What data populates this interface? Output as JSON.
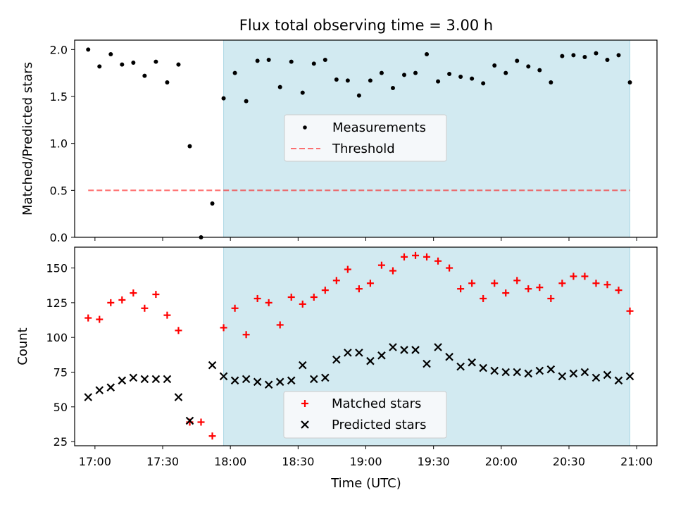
{
  "figure_title": "Flux total observing time = 3.00 h",
  "colors": {
    "shade": "#add8e6",
    "measurement": "#000000",
    "threshold": "#ff0000",
    "matched": "#ff0000",
    "predicted": "#000000"
  },
  "chart_data": [
    {
      "type": "scatter",
      "ylabel": "Matched/Predicted stars",
      "xlim": [
        "16:51",
        "21:09"
      ],
      "ylim": [
        0,
        2.1
      ],
      "yticks": [
        "0.0",
        "0.5",
        "1.0",
        "1.5",
        "2.0"
      ],
      "ytick_values": [
        0,
        0.5,
        1.0,
        1.5,
        2.0
      ],
      "shaded_span": [
        "17:57",
        "20:57"
      ],
      "legend_position": "center",
      "series": [
        {
          "name": "Measurements",
          "style": "dot",
          "x": [
            "16:57",
            "17:02",
            "17:07",
            "17:12",
            "17:17",
            "17:22",
            "17:27",
            "17:32",
            "17:37",
            "17:42",
            "17:47",
            "17:52",
            "17:57",
            "18:02",
            "18:07",
            "18:12",
            "18:17",
            "18:22",
            "18:27",
            "18:32",
            "18:37",
            "18:42",
            "18:47",
            "18:52",
            "18:57",
            "19:02",
            "19:07",
            "19:12",
            "19:17",
            "19:22",
            "19:27",
            "19:32",
            "19:37",
            "19:42",
            "19:47",
            "19:52",
            "19:57",
            "20:02",
            "20:07",
            "20:12",
            "20:17",
            "20:22",
            "20:27",
            "20:32",
            "20:37",
            "20:42",
            "20:47",
            "20:52",
            "20:57"
          ],
          "y": [
            2.0,
            1.82,
            1.95,
            1.84,
            1.86,
            1.72,
            1.87,
            1.65,
            1.84,
            0.97,
            0.0,
            0.36,
            1.48,
            1.75,
            1.45,
            1.88,
            1.89,
            1.6,
            1.87,
            1.54,
            1.85,
            1.89,
            1.68,
            1.67,
            1.51,
            1.67,
            1.75,
            1.59,
            1.73,
            1.75,
            1.95,
            1.66,
            1.74,
            1.71,
            1.69,
            1.64,
            1.83,
            1.75,
            1.88,
            1.82,
            1.78,
            1.65,
            1.93,
            1.94,
            1.92,
            1.96,
            1.89,
            1.94,
            1.65
          ]
        },
        {
          "name": "Threshold",
          "style": "dashed-line",
          "x": [
            "16:57",
            "20:57"
          ],
          "y": [
            0.5,
            0.5
          ]
        }
      ]
    },
    {
      "type": "scatter",
      "ylabel": "Count",
      "xlabel": "Time (UTC)",
      "xlim": [
        "16:51",
        "21:09"
      ],
      "ylim": [
        22,
        165
      ],
      "yticks": [
        "25",
        "50",
        "75",
        "100",
        "125",
        "150"
      ],
      "ytick_values": [
        25,
        50,
        75,
        100,
        125,
        150
      ],
      "xticks": [
        "17:00",
        "17:30",
        "18:00",
        "18:30",
        "19:00",
        "19:30",
        "20:00",
        "20:30",
        "21:00"
      ],
      "xtick_values": [
        "17:00",
        "17:30",
        "18:00",
        "18:30",
        "19:00",
        "19:30",
        "20:00",
        "20:30",
        "21:00"
      ],
      "shaded_span": [
        "17:57",
        "20:57"
      ],
      "legend_position": "lower center",
      "series": [
        {
          "name": "Matched stars",
          "style": "plus",
          "x": [
            "16:57",
            "17:02",
            "17:07",
            "17:12",
            "17:17",
            "17:22",
            "17:27",
            "17:32",
            "17:37",
            "17:42",
            "17:47",
            "17:52",
            "17:57",
            "18:02",
            "18:07",
            "18:12",
            "18:17",
            "18:22",
            "18:27",
            "18:32",
            "18:37",
            "18:42",
            "18:47",
            "18:52",
            "18:57",
            "19:02",
            "19:07",
            "19:12",
            "19:17",
            "19:22",
            "19:27",
            "19:32",
            "19:37",
            "19:42",
            "19:47",
            "19:52",
            "19:57",
            "20:02",
            "20:07",
            "20:12",
            "20:17",
            "20:22",
            "20:27",
            "20:32",
            "20:37",
            "20:42",
            "20:47",
            "20:52",
            "20:57"
          ],
          "y": [
            114,
            113,
            125,
            127,
            132,
            121,
            131,
            116,
            105,
            39,
            39,
            29,
            107,
            121,
            102,
            128,
            125,
            109,
            129,
            124,
            129,
            134,
            141,
            149,
            135,
            139,
            152,
            148,
            158,
            159,
            158,
            155,
            150,
            135,
            139,
            128,
            139,
            132,
            141,
            135,
            136,
            128,
            139,
            144,
            144,
            139,
            138,
            134,
            119
          ]
        },
        {
          "name": "Predicted stars",
          "style": "x",
          "x": [
            "16:57",
            "17:02",
            "17:07",
            "17:12",
            "17:17",
            "17:22",
            "17:27",
            "17:32",
            "17:37",
            "17:42",
            "17:47",
            "17:52",
            "17:57",
            "18:02",
            "18:07",
            "18:12",
            "18:17",
            "18:22",
            "18:27",
            "18:32",
            "18:37",
            "18:42",
            "18:47",
            "18:52",
            "18:57",
            "19:02",
            "19:07",
            "19:12",
            "19:17",
            "19:22",
            "19:27",
            "19:32",
            "19:37",
            "19:42",
            "19:47",
            "19:52",
            "19:57",
            "20:02",
            "20:07",
            "20:12",
            "20:17",
            "20:22",
            "20:27",
            "20:32",
            "20:37",
            "20:42",
            "20:47",
            "20:52",
            "20:57"
          ],
          "y": [
            57,
            62,
            64,
            69,
            71,
            70,
            70,
            70,
            57,
            40,
            null,
            80,
            72,
            69,
            70,
            68,
            66,
            68,
            69,
            80,
            70,
            71,
            84,
            89,
            89,
            83,
            87,
            93,
            91,
            91,
            81,
            93,
            86,
            79,
            82,
            78,
            76,
            75,
            75,
            74,
            76,
            77,
            72,
            74,
            75,
            71,
            73,
            69,
            72
          ]
        }
      ]
    }
  ]
}
